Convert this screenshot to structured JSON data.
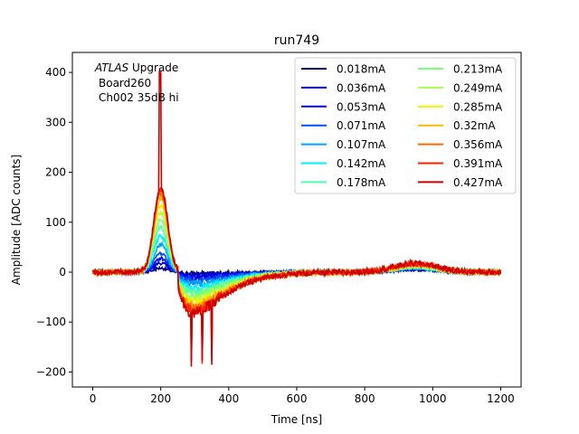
{
  "chart_data": {
    "type": "line",
    "title": "run749",
    "xlabel": "Time [ns]",
    "ylabel": "Amplitude [ADC counts]",
    "xlim": [
      -60,
      1260
    ],
    "ylim": [
      -230,
      440
    ],
    "xticks": [
      0,
      200,
      400,
      600,
      800,
      1000,
      1200
    ],
    "yticks": [
      -200,
      -100,
      0,
      100,
      200,
      300,
      400
    ],
    "xtick_labels": [
      "0",
      "200",
      "400",
      "600",
      "800",
      "1000",
      "1200"
    ],
    "ytick_labels": [
      "−200",
      "−100",
      "0",
      "100",
      "200",
      "300",
      "400"
    ],
    "annotation": {
      "line1_italic": "ATLAS",
      "line1_rest": " Upgrade",
      "line2": "Board260",
      "line3": "Ch002 35dB hi"
    },
    "legend_position": "top-right",
    "legend_columns": 2,
    "grid": false,
    "waveform_model": {
      "x_range": [
        0,
        1200
      ],
      "peak_x": 200,
      "undershoot_x": 300,
      "bump_x": 950
    },
    "series": [
      {
        "name": "0.018mA",
        "color": "#00007f",
        "peak": 8,
        "undershoot": -3,
        "bump": 5
      },
      {
        "name": "0.036mA",
        "color": "#0000c8",
        "peak": 18,
        "undershoot": -7,
        "bump": 6
      },
      {
        "name": "0.053mA",
        "color": "#0000ff",
        "peak": 28,
        "undershoot": -12,
        "bump": 7
      },
      {
        "name": "0.071mA",
        "color": "#0050ff",
        "peak": 38,
        "undershoot": -17,
        "bump": 8
      },
      {
        "name": "0.107mA",
        "color": "#00a4ff",
        "peak": 55,
        "undershoot": -24,
        "bump": 9
      },
      {
        "name": "0.142mA",
        "color": "#00f0ff",
        "peak": 72,
        "undershoot": -32,
        "bump": 10
      },
      {
        "name": "0.178mA",
        "color": "#4dffaa",
        "peak": 90,
        "undershoot": -40,
        "bump": 11
      },
      {
        "name": "0.213mA",
        "color": "#7dff7a",
        "peak": 105,
        "undershoot": -47,
        "bump": 12
      },
      {
        "name": "0.249mA",
        "color": "#aaff4d",
        "peak": 120,
        "undershoot": -54,
        "bump": 13
      },
      {
        "name": "0.285mA",
        "color": "#f0f000",
        "peak": 135,
        "undershoot": -61,
        "bump": 14
      },
      {
        "name": "0.32mA",
        "color": "#ffb900",
        "peak": 148,
        "undershoot": -67,
        "bump": 15
      },
      {
        "name": "0.356mA",
        "color": "#ff6a00",
        "peak": 158,
        "undershoot": -73,
        "bump": 16
      },
      {
        "name": "0.391mA",
        "color": "#ff2200",
        "peak": 166,
        "undershoot": -78,
        "bump": 17
      },
      {
        "name": "0.427mA",
        "color": "#cc0000",
        "peak": 172,
        "undershoot": -82,
        "bump": 18
      }
    ]
  }
}
